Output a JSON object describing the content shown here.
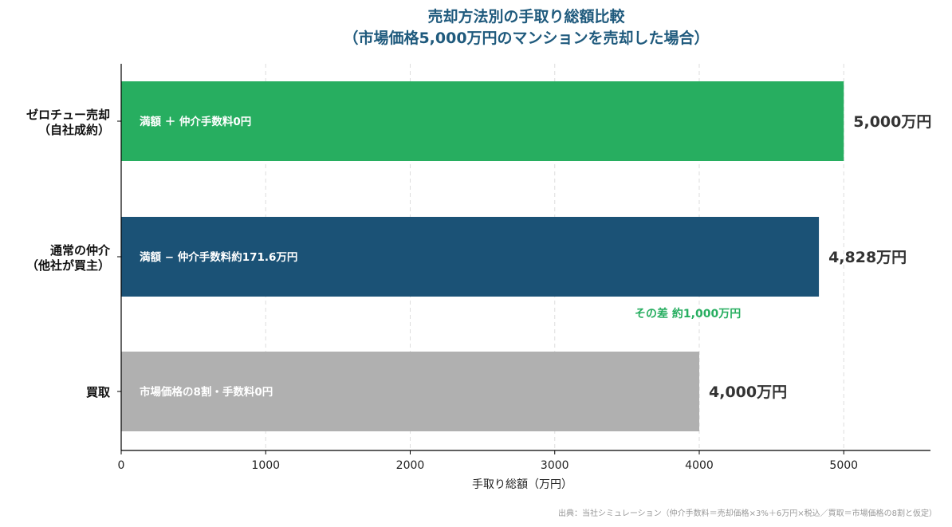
{
  "chart_data": {
    "type": "bar",
    "orientation": "horizontal",
    "title": "売却方法別の手取り総額比較",
    "subtitle": "（市場価格5,000万円のマンションを売却した場合）",
    "xlabel": "手取り総額（万円）",
    "ylabel": "",
    "xlim": [
      0,
      5600
    ],
    "xticks": [
      "0",
      "1000",
      "2000",
      "3000",
      "4000",
      "5000"
    ],
    "grid": "vertical dashed",
    "categories": [
      [
        "ゼロチュー売却",
        "（自社成約）"
      ],
      [
        "通常の仲介",
        "（他社が買主）"
      ],
      [
        "買取"
      ]
    ],
    "values": [
      5000,
      4828,
      4000
    ],
    "colors": [
      "#27ae60",
      "#1b5276",
      "#b0b0b0"
    ],
    "bar_texts": [
      "満額 ＋ 仲介手数料0円",
      "満額 − 仲介手数料約171.6万円",
      "市場価格の8割・手数料0円"
    ],
    "value_labels": [
      "5,000万円",
      "4,828万円",
      "4,000万円"
    ],
    "annotation": "その差 約1,000万円",
    "source": "出典：当社シミュレーション（仲介手数料＝売却価格×3%＋6万円×税込／買取＝市場価格の8割と仮定）"
  }
}
